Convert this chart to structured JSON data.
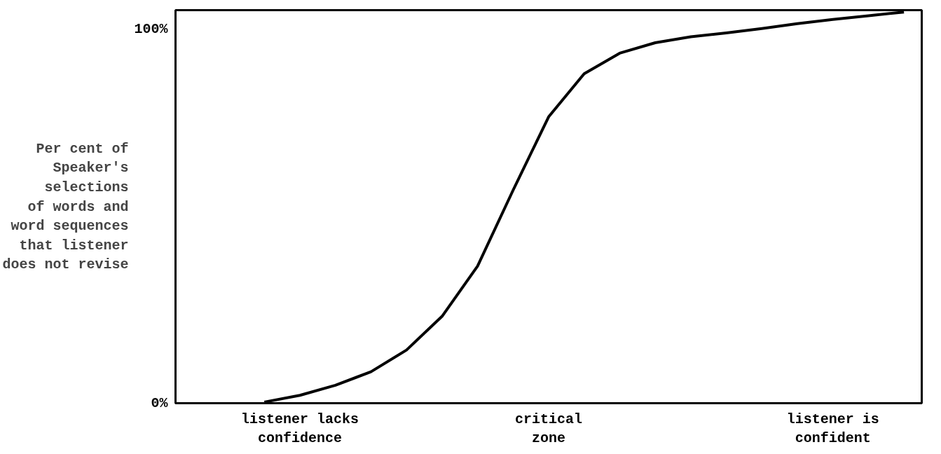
{
  "chart_data": {
    "type": "line",
    "ylabel": "Per cent of\nSpeaker's\nselections\nof words and\nword sequences\nthat listener\ndoes not revise",
    "categories": [
      null,
      null,
      null,
      "listener lacks\nconfidence",
      null,
      null,
      null,
      null,
      null,
      null,
      "critical\nzone",
      null,
      null,
      null,
      null,
      null,
      null,
      null,
      "listener is\nconfident",
      null,
      null
    ],
    "series": [
      {
        "color": "#000000",
        "values": [
          null,
          null,
          0.3,
          2.1,
          4.8,
          8.4,
          14.2,
          23.2,
          36.6,
          56.9,
          76.5,
          88.0,
          93.5,
          96.3,
          97.9,
          98.9,
          100.1,
          101.4,
          102.5,
          103.5,
          104.5
        ]
      }
    ],
    "ylim": [
      0,
      105
    ],
    "yticks": [
      {
        "value": 0,
        "label": "0%"
      },
      {
        "value": 100,
        "label": "100%"
      }
    ],
    "grid": false,
    "marker": "none",
    "line_style": "solid"
  }
}
